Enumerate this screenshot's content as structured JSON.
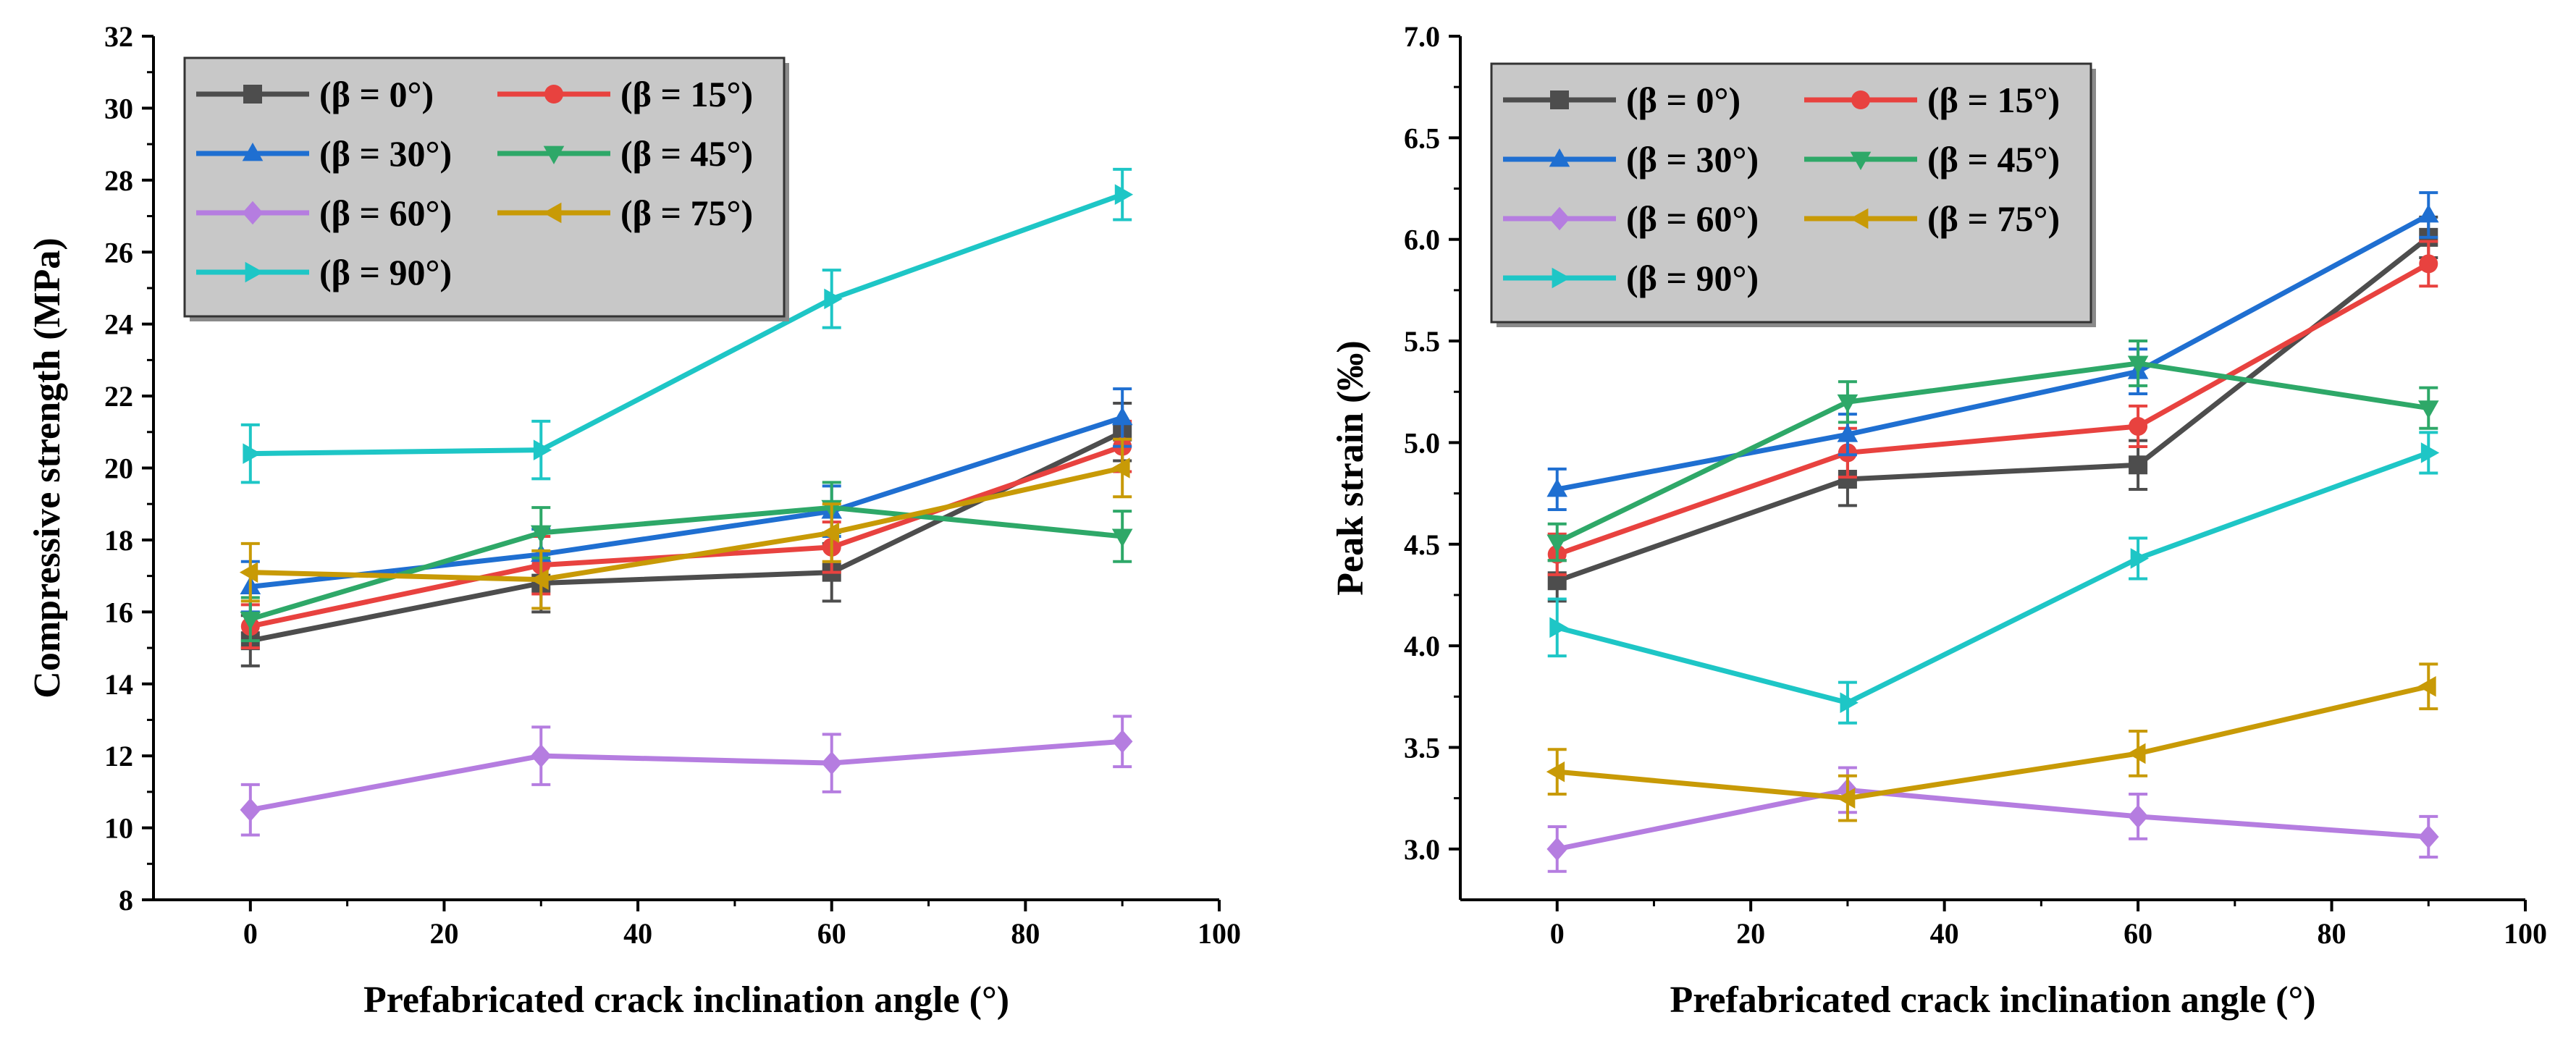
{
  "chart_data": [
    {
      "type": "line",
      "xlabel": "Prefabricated crack inclination angle (°)",
      "ylabel": "Compressive strength (MPa)",
      "xlim": [
        -10,
        100
      ],
      "ylim": [
        8,
        32
      ],
      "xticks": [
        0,
        20,
        40,
        60,
        80,
        100
      ],
      "yticks": [
        8,
        10,
        12,
        14,
        16,
        18,
        20,
        22,
        24,
        26,
        28,
        30,
        32
      ],
      "x": [
        0,
        30,
        60,
        90
      ],
      "legend_position": "top-left",
      "series": [
        {
          "name": "(β = 0°)",
          "marker": "square",
          "color": "#4d4d4d",
          "values": [
            15.2,
            16.8,
            17.1,
            21.0
          ],
          "errors": [
            0.7,
            0.8,
            0.8,
            0.8
          ]
        },
        {
          "name": "(β = 15°)",
          "marker": "circle",
          "color": "#e8423f",
          "values": [
            15.6,
            17.3,
            17.8,
            20.6
          ],
          "errors": [
            0.6,
            0.8,
            0.7,
            0.7
          ]
        },
        {
          "name": "(β = 30°)",
          "marker": "triangle-up",
          "color": "#1f6fd1",
          "values": [
            16.7,
            17.6,
            18.8,
            21.4
          ],
          "errors": [
            0.7,
            0.7,
            0.7,
            0.8
          ]
        },
        {
          "name": "(β = 45°)",
          "marker": "triangle-down",
          "color": "#2ea868",
          "values": [
            15.8,
            18.2,
            18.9,
            18.1
          ],
          "errors": [
            0.6,
            0.7,
            0.7,
            0.7
          ]
        },
        {
          "name": "(β = 60°)",
          "marker": "diamond",
          "color": "#b57de0",
          "values": [
            10.5,
            12.0,
            11.8,
            12.4
          ],
          "errors": [
            0.7,
            0.8,
            0.8,
            0.7
          ]
        },
        {
          "name": "(β = 75°)",
          "marker": "triangle-left",
          "color": "#c89a06",
          "values": [
            17.1,
            16.9,
            18.2,
            20.0
          ],
          "errors": [
            0.8,
            0.8,
            0.8,
            0.8
          ]
        },
        {
          "name": "(β = 90°)",
          "marker": "triangle-right",
          "color": "#1ec6c6",
          "values": [
            20.4,
            20.5,
            24.7,
            27.6
          ],
          "errors": [
            0.8,
            0.8,
            0.8,
            0.7
          ]
        }
      ]
    },
    {
      "type": "line",
      "xlabel": "Prefabricated crack inclination angle (°)",
      "ylabel": "Peak strain (‰)",
      "xlim": [
        -10,
        100
      ],
      "ylim": [
        2.75,
        7.0
      ],
      "xticks": [
        0,
        20,
        40,
        60,
        80,
        100
      ],
      "yticks": [
        3.0,
        3.5,
        4.0,
        4.5,
        5.0,
        5.5,
        6.0,
        6.5,
        7.0
      ],
      "x": [
        0,
        30,
        60,
        90
      ],
      "legend_position": "top-left",
      "series": [
        {
          "name": "(β = 0°)",
          "marker": "square",
          "color": "#4d4d4d",
          "values": [
            4.32,
            4.82,
            4.89,
            6.01
          ],
          "errors": [
            0.1,
            0.13,
            0.12,
            0.1
          ]
        },
        {
          "name": "(β = 15°)",
          "marker": "circle",
          "color": "#e8423f",
          "values": [
            4.45,
            4.95,
            5.08,
            5.88
          ],
          "errors": [
            0.1,
            0.12,
            0.1,
            0.11
          ]
        },
        {
          "name": "(β = 30°)",
          "marker": "triangle-up",
          "color": "#1f6fd1",
          "values": [
            4.77,
            5.04,
            5.35,
            6.12
          ],
          "errors": [
            0.1,
            0.1,
            0.11,
            0.11
          ]
        },
        {
          "name": "(β = 45°)",
          "marker": "triangle-down",
          "color": "#2ea868",
          "values": [
            4.51,
            5.2,
            5.39,
            5.17
          ],
          "errors": [
            0.09,
            0.1,
            0.11,
            0.1
          ]
        },
        {
          "name": "(β = 60°)",
          "marker": "diamond",
          "color": "#b57de0",
          "values": [
            3.0,
            3.29,
            3.16,
            3.06
          ],
          "errors": [
            0.11,
            0.11,
            0.11,
            0.1
          ]
        },
        {
          "name": "(β = 75°)",
          "marker": "triangle-left",
          "color": "#c89a06",
          "values": [
            3.38,
            3.25,
            3.47,
            3.8
          ],
          "errors": [
            0.11,
            0.11,
            0.11,
            0.11
          ]
        },
        {
          "name": "(β = 90°)",
          "marker": "triangle-right",
          "color": "#1ec6c6",
          "values": [
            4.09,
            3.72,
            4.43,
            4.95
          ],
          "errors": [
            0.14,
            0.1,
            0.1,
            0.1
          ]
        }
      ]
    }
  ]
}
